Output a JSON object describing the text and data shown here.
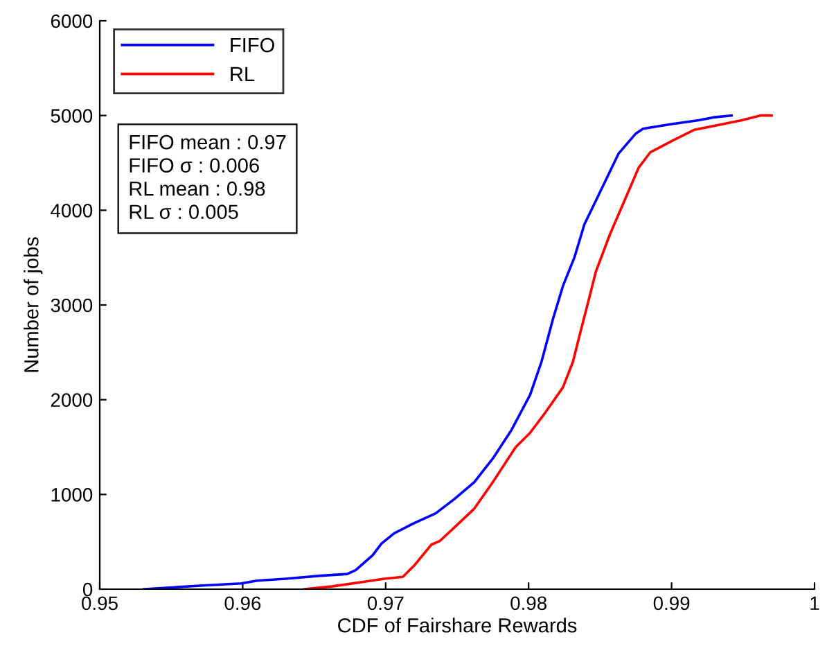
{
  "chart_data": {
    "type": "line",
    "xlabel": "CDF of Fairshare Rewards",
    "ylabel": "Number of jobs",
    "xlim": [
      0.95,
      1
    ],
    "xticks": [
      0.95,
      0.96,
      0.97,
      0.98,
      0.99,
      1
    ],
    "ylim": [
      0,
      6000
    ],
    "yticks": [
      0,
      1000,
      2000,
      3000,
      4000,
      5000,
      6000
    ],
    "grid": false,
    "legend": "top left",
    "line_style": "solid",
    "marker": "none",
    "annotations": [
      "FIFO mean : 0.97",
      "FIFO σ : 0.006",
      "RL mean : 0.98",
      "RL σ : 0.005"
    ],
    "series": [
      {
        "name": "FIFO",
        "color": "#0000ff",
        "x": [
          0.9531,
          0.9574,
          0.9599,
          0.961,
          0.963,
          0.9653,
          0.9673,
          0.9679,
          0.9691,
          0.9697,
          0.9706,
          0.9719,
          0.9735,
          0.9748,
          0.9762,
          0.9775,
          0.9788,
          0.9801,
          0.9809,
          0.9817,
          0.9824,
          0.9832,
          0.9839,
          0.9847,
          0.9863,
          0.9875,
          0.988,
          0.99,
          0.9919,
          0.9929,
          0.9942
        ],
        "values": [
          0,
          40,
          60,
          90,
          110,
          140,
          160,
          200,
          360,
          480,
          590,
          690,
          800,
          950,
          1130,
          1380,
          1680,
          2050,
          2400,
          2850,
          3200,
          3500,
          3850,
          4100,
          4600,
          4810,
          4860,
          4910,
          4950,
          4980,
          5000
        ]
      },
      {
        "name": "RL",
        "color": "#ff0000",
        "x": [
          0.9643,
          0.9663,
          0.9686,
          0.9699,
          0.9712,
          0.972,
          0.9732,
          0.9738,
          0.9748,
          0.9762,
          0.9775,
          0.9791,
          0.9801,
          0.9811,
          0.9824,
          0.9831,
          0.9836,
          0.9842,
          0.9847,
          0.9857,
          0.9867,
          0.9877,
          0.9885,
          0.99,
          0.9916,
          0.9933,
          0.9949,
          0.9962,
          0.997
        ],
        "values": [
          0,
          30,
          80,
          110,
          130,
          250,
          470,
          510,
          650,
          850,
          1130,
          1500,
          1650,
          1850,
          2130,
          2400,
          2700,
          3050,
          3350,
          3750,
          4100,
          4450,
          4610,
          4730,
          4850,
          4900,
          4950,
          5000,
          5000
        ]
      }
    ]
  }
}
